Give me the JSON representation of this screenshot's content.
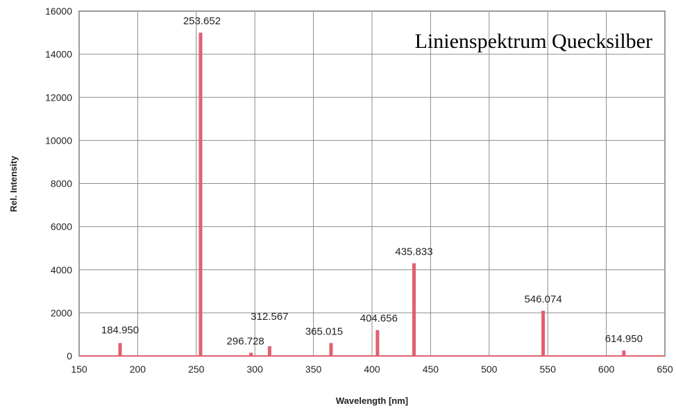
{
  "chart_data": {
    "type": "bar",
    "title": "Linienspektrum Quecksilber",
    "xlabel": "Wavelength [nm]",
    "ylabel": "Rel. Intensity",
    "xlim": [
      150,
      650
    ],
    "ylim": [
      0,
      16000
    ],
    "x_ticks": [
      "150",
      "200",
      "250",
      "300",
      "350",
      "400",
      "450",
      "500",
      "550",
      "600",
      "650"
    ],
    "y_ticks": [
      "0",
      "2000",
      "4000",
      "6000",
      "8000",
      "10000",
      "12000",
      "14000",
      "16000"
    ],
    "grid": true,
    "legend": "none",
    "color": "#e06070",
    "series": [
      {
        "x": [
          184.95,
          253.652,
          296.728,
          312.567,
          365.015,
          404.656,
          435.833,
          546.074,
          614.95
        ],
        "values": [
          600,
          15000,
          150,
          450,
          600,
          1200,
          4300,
          2100,
          250
        ],
        "labels": [
          "184.950",
          "253.652",
          "296.728",
          "312.567",
          "365.015",
          "404.656",
          "435.833",
          "546.074",
          "614.950"
        ]
      }
    ]
  }
}
